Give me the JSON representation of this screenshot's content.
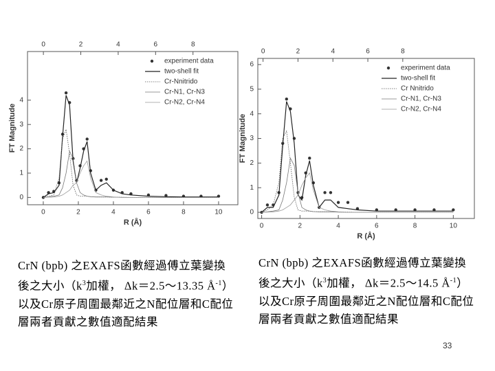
{
  "chart_data": [
    {
      "type": "line",
      "xlabel": "R (Å)",
      "ylabel": "FT Magnitude",
      "xlim": [
        -0.9,
        11.1
      ],
      "xticks": [
        0,
        2,
        4,
        6,
        8,
        10
      ],
      "x2lim": [
        -0.85,
        10.4
      ],
      "x2ticks": [
        0,
        2,
        4,
        6,
        8
      ],
      "ylim": [
        -0.3,
        6
      ],
      "yticks": [
        0,
        1,
        2,
        3,
        4
      ],
      "x": [
        0,
        0.3,
        0.6,
        0.9,
        1.1,
        1.3,
        1.5,
        1.7,
        1.9,
        2.1,
        2.3,
        2.5,
        2.7,
        3,
        3.3,
        3.6,
        4,
        4.5,
        5,
        6,
        7,
        8,
        9,
        10
      ],
      "series": [
        {
          "name": "experiment data",
          "color": "#333333",
          "style": "points",
          "values": [
            0,
            0.2,
            0.25,
            0.6,
            2.6,
            4.3,
            3.9,
            1.6,
            0.7,
            1.3,
            2.0,
            2.4,
            1.1,
            0.3,
            0.7,
            0.75,
            0.3,
            0.2,
            0.15,
            0.1,
            0.08,
            0.05,
            0.05,
            0.05
          ]
        },
        {
          "name": "two-shell fit",
          "color": "#222222",
          "style": "solid",
          "values": [
            0,
            0.15,
            0.2,
            0.5,
            2.5,
            4.2,
            3.8,
            1.5,
            0.6,
            1.2,
            1.9,
            2.3,
            1.0,
            0.3,
            0.5,
            0.6,
            0.3,
            0.15,
            0.1,
            0.05,
            0.03,
            0.02,
            0.02,
            0.02
          ]
        },
        {
          "name": "Cr-Nnitrido",
          "color": "#555555",
          "style": "dotted",
          "values": [
            0,
            0.05,
            0.1,
            0.8,
            2.4,
            2.8,
            1.8,
            0.5,
            0.1,
            0.05,
            0.05,
            0.05,
            0.03,
            0.02,
            0.02,
            0.02,
            0.01,
            0.01,
            0,
            0,
            0,
            0,
            0,
            0
          ]
        },
        {
          "name": "Cr-N1, Cr-N3",
          "color": "#777777",
          "style": "thin",
          "values": [
            0,
            0.02,
            0.05,
            0.1,
            0.4,
            1.0,
            1.9,
            1.6,
            0.6,
            0.2,
            0.1,
            0.05,
            0.03,
            0.02,
            0.02,
            0.02,
            0.01,
            0,
            0,
            0,
            0,
            0,
            0,
            0
          ]
        },
        {
          "name": "Cr-N2, Cr-N4",
          "color": "#999999",
          "style": "thin",
          "values": [
            0,
            0.01,
            0.02,
            0.05,
            0.1,
            0.2,
            0.3,
            0.5,
            0.6,
            1.0,
            1.3,
            1.5,
            0.8,
            0.2,
            0.1,
            0.05,
            0.02,
            0,
            0,
            0,
            0,
            0,
            0,
            0
          ]
        }
      ]
    },
    {
      "type": "line",
      "xlabel": "R (Å)",
      "ylabel": "FT Magnitude",
      "xlim": [
        -0.2,
        11.1
      ],
      "xticks": [
        0,
        2,
        4,
        6,
        8,
        10
      ],
      "x2lim": [
        -0.3,
        12.1
      ],
      "x2ticks": [
        0,
        2,
        4,
        6,
        8
      ],
      "ylim": [
        -0.25,
        6.25
      ],
      "yticks": [
        0,
        1,
        2,
        3,
        4,
        5,
        6
      ],
      "x": [
        0,
        0.3,
        0.6,
        0.9,
        1.1,
        1.3,
        1.5,
        1.7,
        1.9,
        2.1,
        2.3,
        2.5,
        2.7,
        3,
        3.3,
        3.6,
        4,
        4.5,
        5,
        6,
        7,
        8,
        9,
        10
      ],
      "series": [
        {
          "name": "experiment data",
          "color": "#333333",
          "style": "points",
          "values": [
            0,
            0.3,
            0.3,
            0.8,
            2.8,
            4.6,
            4.2,
            3.0,
            0.8,
            0.6,
            1.6,
            2.2,
            1.2,
            0.2,
            0.8,
            0.8,
            0.4,
            0.4,
            0.15,
            0.1,
            0.1,
            0.1,
            0.1,
            0.1
          ]
        },
        {
          "name": "two-shell fit",
          "color": "#222222",
          "style": "solid",
          "values": [
            0,
            0.2,
            0.2,
            0.7,
            2.7,
            4.5,
            4.1,
            2.8,
            0.7,
            0.5,
            1.5,
            2.1,
            1.1,
            0.2,
            0.5,
            0.5,
            0.2,
            0.15,
            0.1,
            0.05,
            0.05,
            0.05,
            0.05,
            0.05
          ]
        },
        {
          "name": "Cr Nnitrido",
          "color": "#555555",
          "style": "dotted",
          "values": [
            0,
            0.1,
            0.3,
            1.2,
            3.0,
            3.3,
            2.0,
            0.6,
            0.1,
            0.05,
            0.05,
            0.05,
            0.03,
            0.02,
            0.02,
            0.02,
            0.01,
            0.01,
            0,
            0,
            0,
            0,
            0,
            0
          ]
        },
        {
          "name": "Cr-N1, Cr-N3",
          "color": "#777777",
          "style": "thin",
          "values": [
            0,
            0.02,
            0.05,
            0.1,
            0.5,
            1.2,
            2.2,
            1.9,
            0.8,
            0.2,
            0.1,
            0.05,
            0.03,
            0.02,
            0.02,
            0.02,
            0.01,
            0,
            0,
            0,
            0,
            0,
            0,
            0
          ]
        },
        {
          "name": "Cr-N2, Cr-N4",
          "color": "#999999",
          "style": "thin",
          "values": [
            0,
            0.01,
            0.02,
            0.05,
            0.1,
            0.2,
            0.3,
            0.5,
            0.7,
            1.1,
            1.4,
            1.6,
            0.9,
            0.2,
            0.1,
            0.05,
            0.02,
            0,
            0,
            0,
            0,
            0,
            0,
            0
          ]
        }
      ]
    }
  ],
  "captions": [
    [
      "CrN (bpb) 之EXAFS函數經過傅立葉變換後之大小（k",
      "3",
      "加權， Δk＝2.5～13.35 Å",
      "-1",
      "）以及Cr原子周圍最鄰近之N配位層和C配位層兩者貢獻之數值適配結果"
    ],
    [
      "CrN (bpb) 之EXAFS函數經過傅立葉變換後之大小（k",
      "3",
      "加權， Δk＝2.5～14.5 Å",
      "-1",
      "）以及Cr原子周圍最鄰近之N配位層和C配位層兩者貢獻之數值適配結果"
    ]
  ],
  "page_number": "33"
}
